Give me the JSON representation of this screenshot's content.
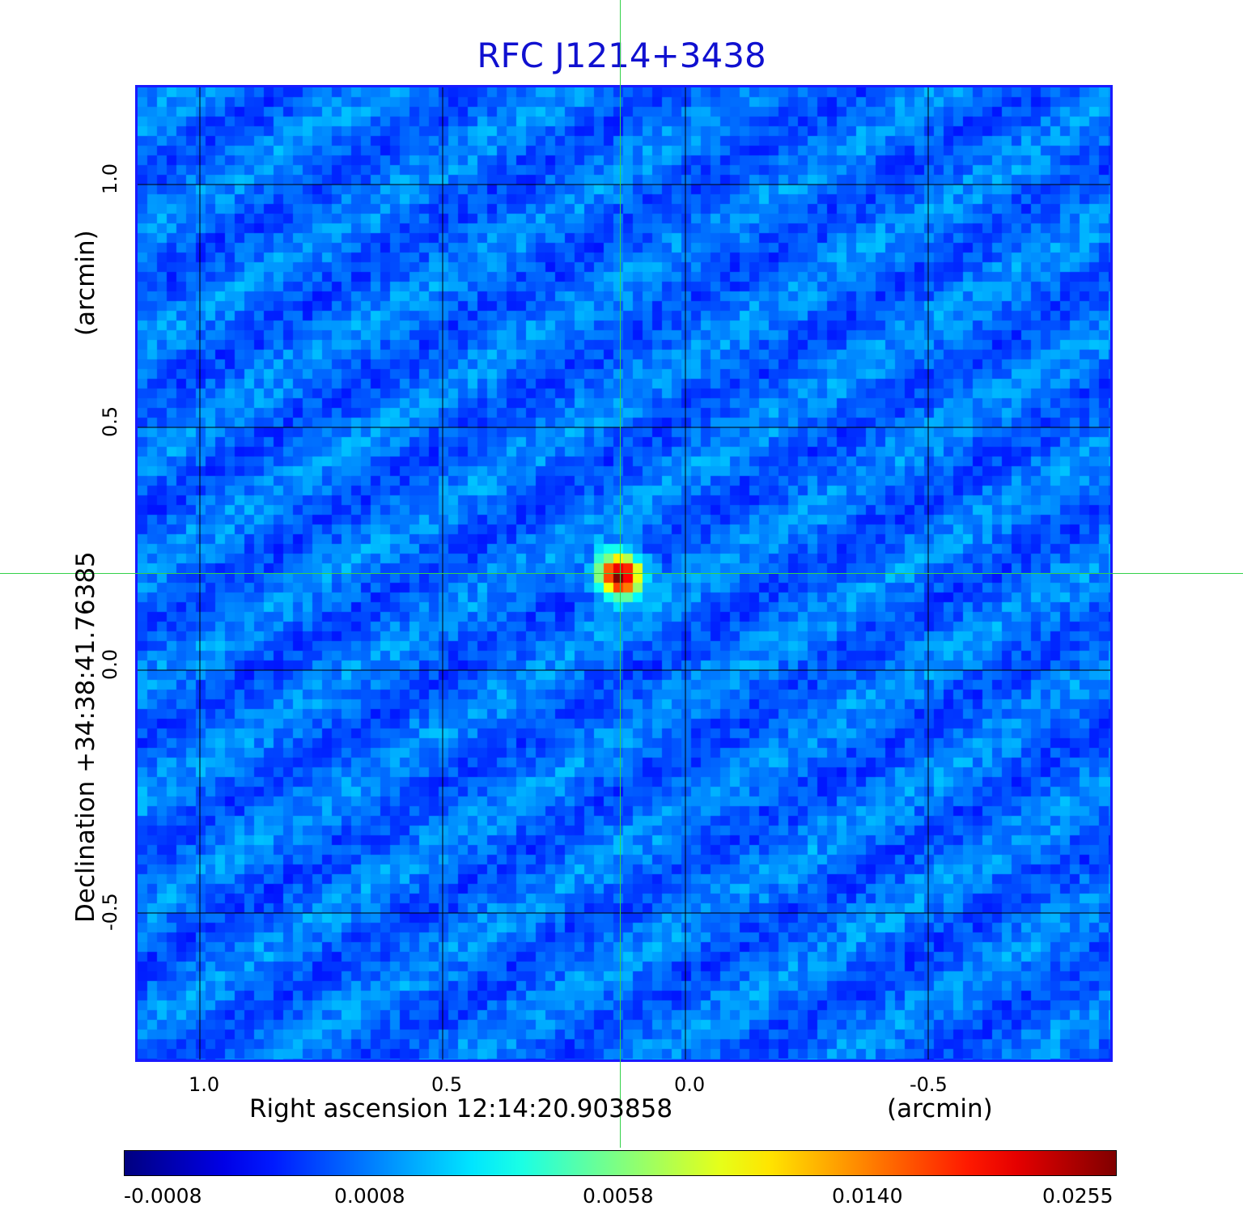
{
  "title": "RFC J1214+3438",
  "x_axis": {
    "label": "Right ascension  12:14:20.903858",
    "unit_label": "(arcmin)",
    "ticks": [
      "1.0",
      "0.5",
      "0.0",
      "-0.5"
    ]
  },
  "y_axis": {
    "label": "Declination  +34:38:41.76385",
    "unit_label": "(arcmin)",
    "ticks": [
      "1.0",
      "0.5",
      "0.0",
      "-0.5"
    ]
  },
  "colorbar": {
    "labels": [
      "-0.0008",
      "0.0008",
      "0.0058",
      "0.0140",
      "0.0255"
    ],
    "colormap": "jet"
  },
  "colors": {
    "title": "#1010d0",
    "frame": "#1a1aff",
    "crosshair": "#34d24a",
    "grid": "#000000"
  },
  "source": {
    "peak_value": 0.0255,
    "offset_x_arcmin": 0.135,
    "offset_y_arcmin": 0.2
  }
}
